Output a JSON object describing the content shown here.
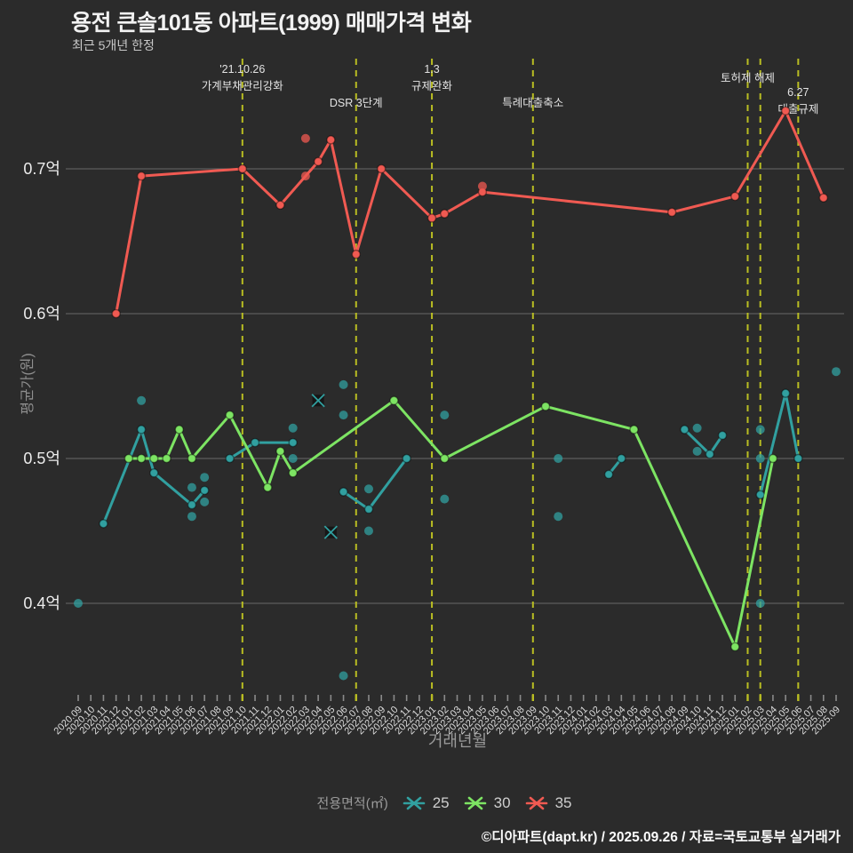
{
  "title": "용전 큰솔101동 아파트(1999) 매매가격 변화",
  "subtitle": "최근 5개년 한정",
  "footer": "©디아파트(dapt.kr) / 2025.09.26 / 자료=국토교통부 실거래가",
  "chart_data": {
    "type": "line",
    "title": "용전 큰솔101동 아파트(1999) 매매가격 변화",
    "x_label": "거래년월",
    "y_label": "평균가(원)",
    "x_range": [
      "2020.09",
      "2025.09"
    ],
    "x_tick_interval": "month",
    "grid": true,
    "ylim": [
      0.33,
      0.77
    ],
    "y_ticks": [
      {
        "label": "0.4억",
        "value": 0.4
      },
      {
        "label": "0.5억",
        "value": 0.5
      },
      {
        "label": "0.6억",
        "value": 0.6
      },
      {
        "label": "0.7억",
        "value": 0.7
      }
    ],
    "unit": "억",
    "event_line_color": "#b9bd22",
    "event_lines": [
      "2021.10",
      "2022.07",
      "2023.01",
      "2023.09",
      "2025.02",
      "2025.03",
      "2025.06"
    ],
    "annotations": [
      {
        "month": "2021.10",
        "lines": [
          "'21.10.26",
          "가계부채관리강화"
        ],
        "y": 82
      },
      {
        "month": "2022.07",
        "lines": [
          "DSR 3단계"
        ],
        "y": 120
      },
      {
        "month": "2023.01",
        "lines": [
          "1.3",
          "규제완화"
        ],
        "y": 82
      },
      {
        "month": "2023.09",
        "lines": [
          "특례대출축소"
        ],
        "y": 120
      },
      {
        "month": "2025.02",
        "lines": [
          "토허제 해제"
        ],
        "y": 92
      },
      {
        "month": "2025.06",
        "lines": [
          "6.27",
          "대출규제"
        ],
        "y": 108
      }
    ],
    "legend": {
      "title": "전용면적(㎡)",
      "position": "bottom"
    },
    "series": [
      {
        "name": "25",
        "color": "#31a0a0",
        "segments": [
          [
            [
              "2020.11",
              0.455
            ],
            [
              "2021.02",
              0.52
            ],
            [
              "2021.03",
              0.49
            ],
            [
              "2021.06",
              0.468
            ],
            [
              "2021.07",
              0.478
            ]
          ],
          [
            [
              "2021.09",
              0.5
            ],
            [
              "2021.11",
              0.511
            ],
            [
              "2022.02",
              0.511
            ]
          ],
          [
            [
              "2022.06",
              0.477
            ],
            [
              "2022.08",
              0.465
            ],
            [
              "2022.11",
              0.5
            ]
          ],
          [
            [
              "2024.03",
              0.489
            ],
            [
              "2024.04",
              0.5
            ]
          ],
          [
            [
              "2024.09",
              0.52
            ],
            [
              "2024.11",
              0.503
            ],
            [
              "2024.12",
              0.516
            ]
          ],
          [
            [
              "2025.03",
              0.475
            ],
            [
              "2025.05",
              0.545
            ],
            [
              "2025.06",
              0.5
            ]
          ]
        ],
        "scatter": [
          [
            "2020.09",
            0.4
          ],
          [
            "2021.02",
            0.54
          ],
          [
            "2021.06",
            0.48
          ],
          [
            "2021.06",
            0.46
          ],
          [
            "2021.07",
            0.487
          ],
          [
            "2021.07",
            0.47
          ],
          [
            "2022.02",
            0.521
          ],
          [
            "2022.02",
            0.5
          ],
          [
            "2022.06",
            0.551
          ],
          [
            "2022.06",
            0.53
          ],
          [
            "2022.06",
            0.35
          ],
          [
            "2022.08",
            0.479
          ],
          [
            "2022.08",
            0.45
          ],
          [
            "2023.02",
            0.53
          ],
          [
            "2023.02",
            0.472
          ],
          [
            "2023.11",
            0.5
          ],
          [
            "2023.11",
            0.46
          ],
          [
            "2024.10",
            0.521
          ],
          [
            "2024.10",
            0.505
          ],
          [
            "2025.03",
            0.52
          ],
          [
            "2025.03",
            0.5
          ],
          [
            "2025.03",
            0.4
          ],
          [
            "2025.09",
            0.56
          ]
        ],
        "cancelled": [
          [
            "2022.04",
            0.54
          ],
          [
            "2022.05",
            0.449
          ]
        ]
      },
      {
        "name": "30",
        "color": "#7de463",
        "segments": [
          [
            [
              "2021.01",
              0.5
            ],
            [
              "2021.02",
              0.5
            ],
            [
              "2021.03",
              0.5
            ],
            [
              "2021.04",
              0.5
            ],
            [
              "2021.05",
              0.52
            ],
            [
              "2021.06",
              0.5
            ],
            [
              "2021.09",
              0.53
            ],
            [
              "2021.12",
              0.48
            ],
            [
              "2022.01",
              0.505
            ],
            [
              "2022.02",
              0.49
            ],
            [
              "2022.10",
              0.54
            ],
            [
              "2023.02",
              0.5
            ],
            [
              "2023.10",
              0.536
            ],
            [
              "2024.05",
              0.52
            ],
            [
              "2025.01",
              0.37
            ],
            [
              "2025.04",
              0.5
            ]
          ]
        ],
        "scatter": [],
        "cancelled": []
      },
      {
        "name": "35",
        "color": "#f05a52",
        "segments": [
          [
            [
              "2020.12",
              0.6
            ],
            [
              "2021.02",
              0.695
            ],
            [
              "2021.10",
              0.7
            ],
            [
              "2022.01",
              0.675
            ],
            [
              "2022.04",
              0.705
            ],
            [
              "2022.05",
              0.72
            ],
            [
              "2022.07",
              0.641
            ],
            [
              "2022.09",
              0.7
            ],
            [
              "2023.01",
              0.666
            ],
            [
              "2023.02",
              0.669
            ],
            [
              "2023.05",
              0.684
            ],
            [
              "2024.08",
              0.67
            ],
            [
              "2025.01",
              0.681
            ],
            [
              "2025.05",
              0.74
            ],
            [
              "2025.08",
              0.68
            ]
          ]
        ],
        "scatter": [
          [
            "2022.03",
            0.721
          ],
          [
            "2022.03",
            0.695
          ],
          [
            "2023.05",
            0.688
          ]
        ],
        "cancelled": []
      }
    ]
  }
}
